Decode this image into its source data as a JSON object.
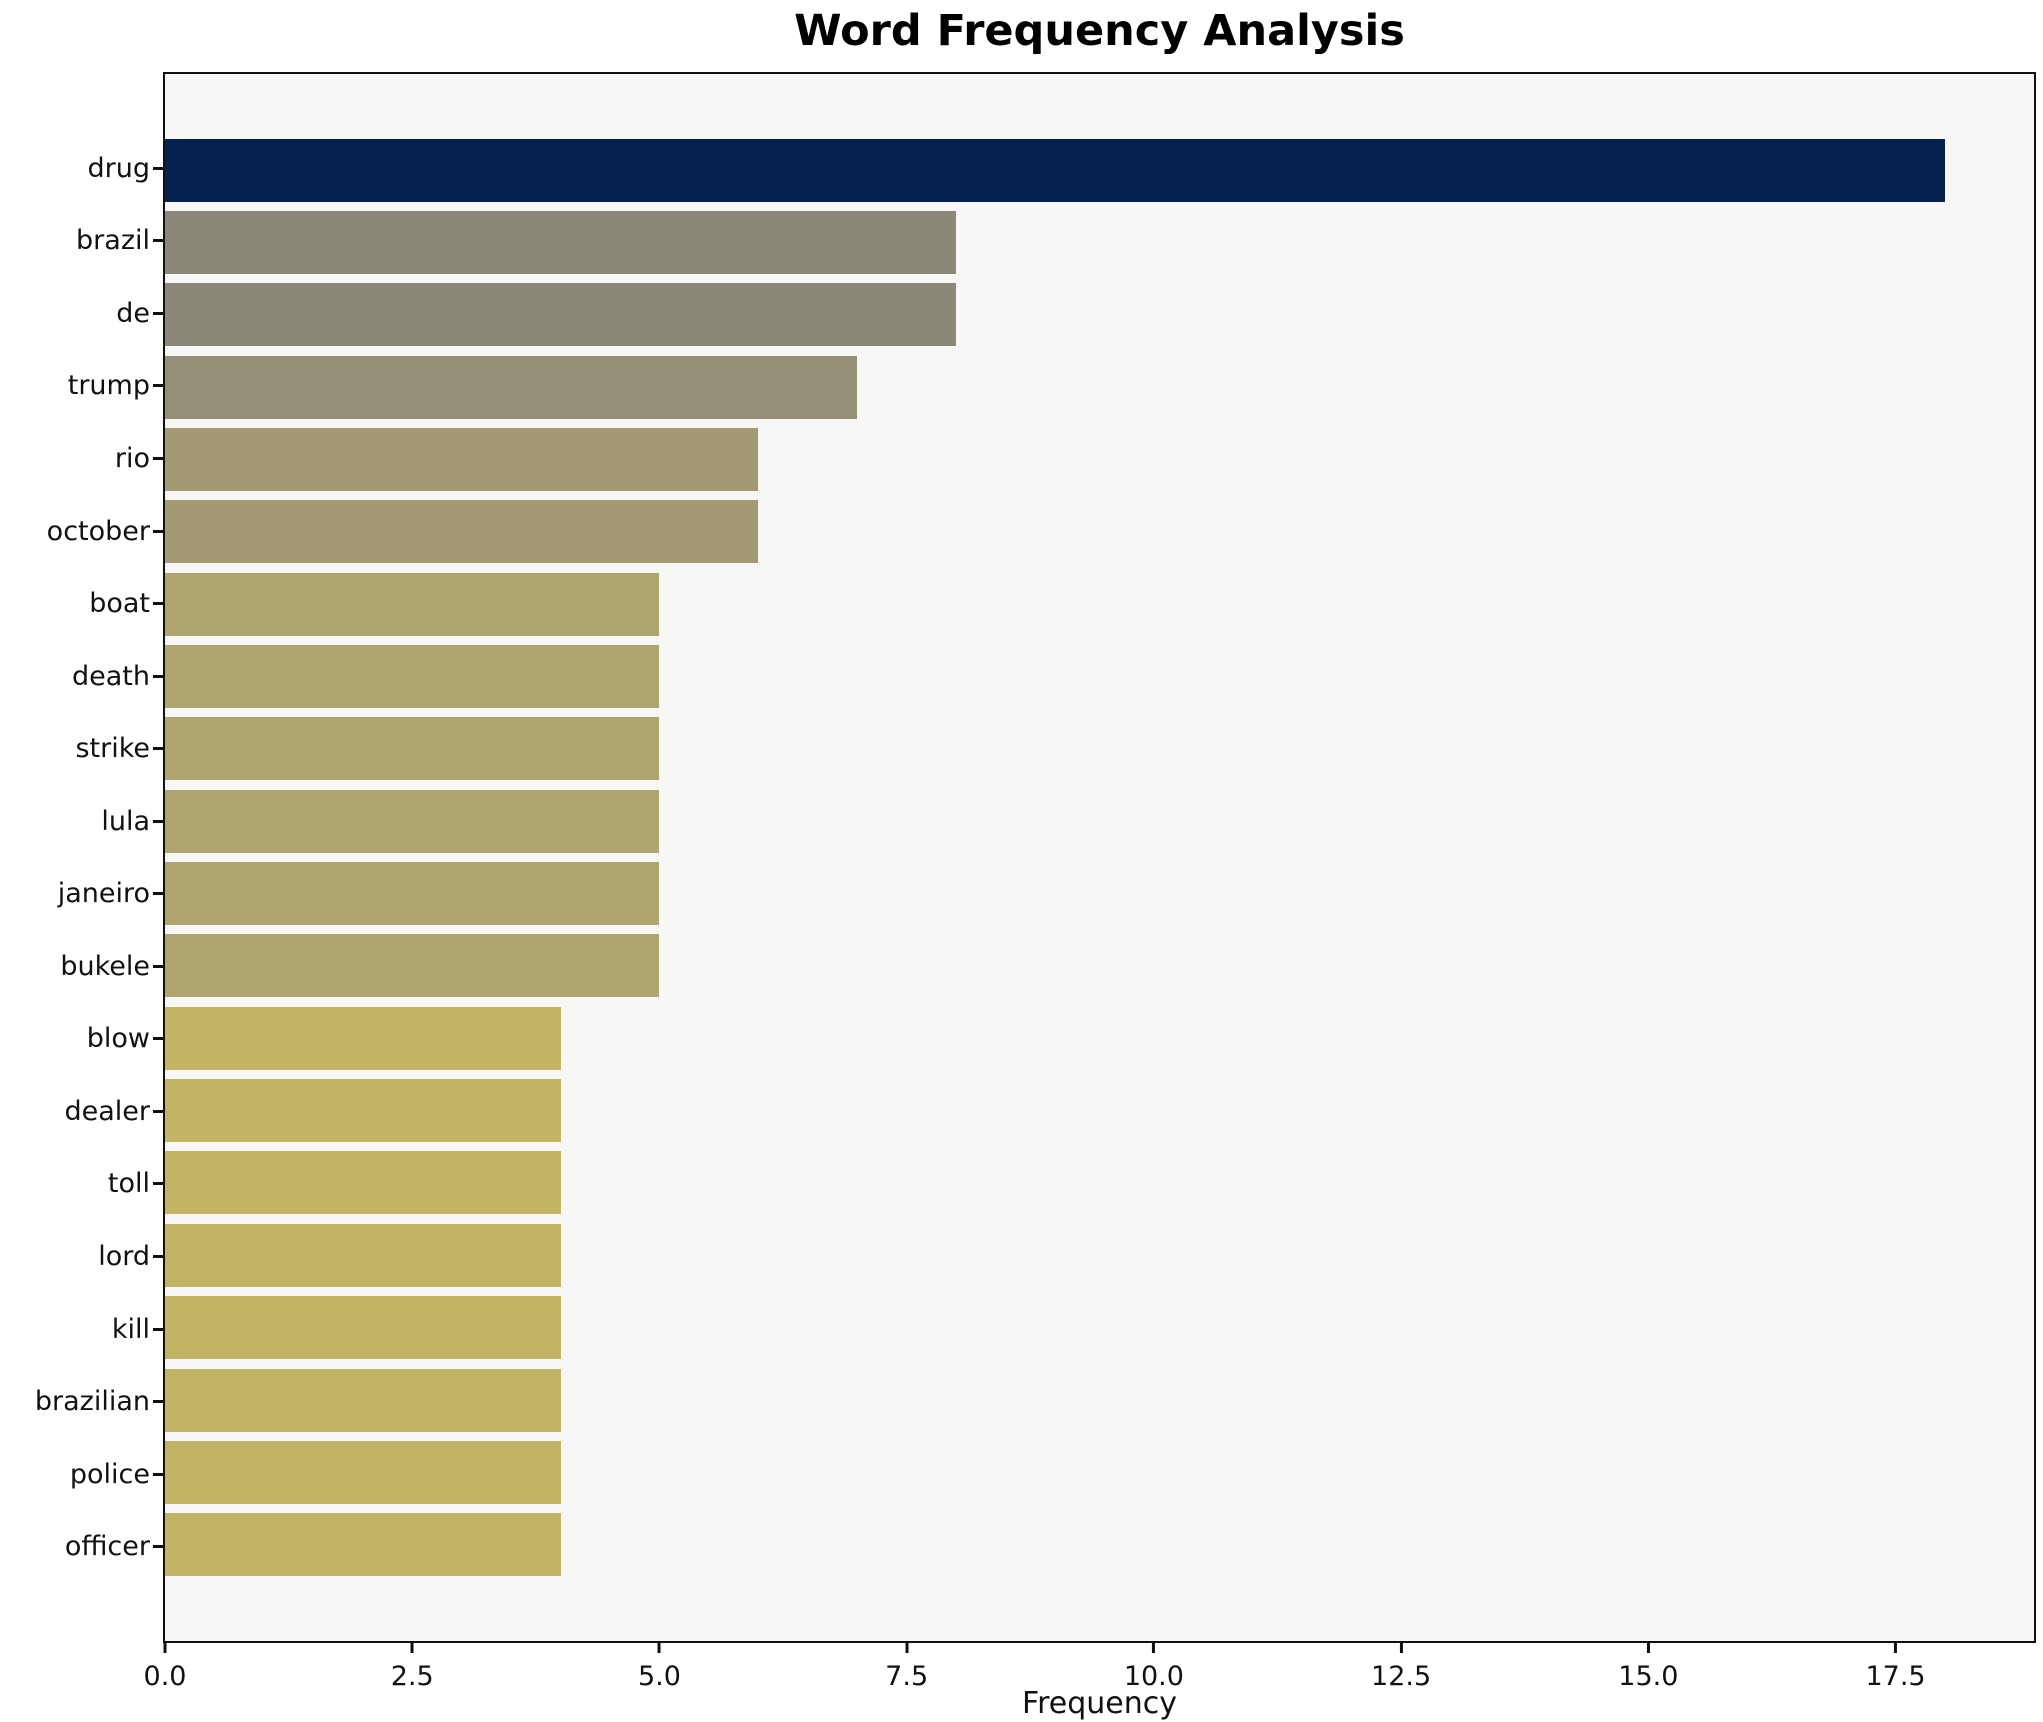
{
  "title": "Word Frequency Analysis",
  "colors": {
    "figure_bg": "#ffffff",
    "plot_bg": "#f7f7f6",
    "spine": "#111111",
    "text": "#111111"
  },
  "chart_data": {
    "type": "bar",
    "orientation": "horizontal",
    "title": "Word Frequency Analysis",
    "xlabel": "Frequency",
    "ylabel": "",
    "grid": false,
    "legend": false,
    "xlim": [
      0,
      18.9
    ],
    "x_ticks": [
      0.0,
      2.5,
      5.0,
      7.5,
      10.0,
      12.5,
      15.0,
      17.5
    ],
    "x_tick_labels": [
      "0.0",
      "2.5",
      "5.0",
      "7.5",
      "10.0",
      "12.5",
      "15.0",
      "17.5"
    ],
    "categories": [
      "drug",
      "brazil",
      "de",
      "trump",
      "rio",
      "october",
      "boat",
      "death",
      "strike",
      "lula",
      "janeiro",
      "bukele",
      "blow",
      "dealer",
      "toll",
      "lord",
      "kill",
      "brazilian",
      "police",
      "officer"
    ],
    "values": [
      18,
      8,
      8,
      7,
      6,
      6,
      5,
      5,
      5,
      5,
      5,
      5,
      4,
      4,
      4,
      4,
      4,
      4,
      4,
      4
    ],
    "bar_colors": [
      "#04234e",
      "#8b8779",
      "#8b8779",
      "#968f77",
      "#a39a74",
      "#a39a74",
      "#aea46e",
      "#aea46e",
      "#aea46e",
      "#aea46e",
      "#aea46e",
      "#aea46e",
      "#c2b365",
      "#c2b365",
      "#c2b365",
      "#c2b365",
      "#c2b365",
      "#c2b365",
      "#c2b365",
      "#c2b365"
    ]
  }
}
